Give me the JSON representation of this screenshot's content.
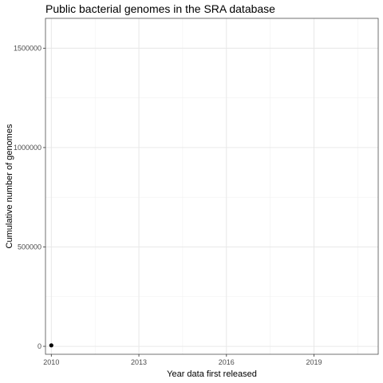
{
  "chart_data": {
    "type": "scatter",
    "title": "Public bacterial genomes in the SRA database",
    "xlabel": "Year data first released",
    "ylabel": "Cumulative number of genomes",
    "xlim": [
      2009.8,
      2021.2
    ],
    "ylim": [
      -40000,
      1650000
    ],
    "x_ticks": [
      2010,
      2013,
      2016,
      2019
    ],
    "x_tick_labels": [
      "2010",
      "2013",
      "2016",
      "2019"
    ],
    "y_ticks": [
      0,
      500000,
      1000000,
      1500000
    ],
    "y_tick_labels": [
      "0",
      "500000",
      "1000000",
      "1500000"
    ],
    "grid": true,
    "points": [
      {
        "x": 2010,
        "y": 5000
      }
    ],
    "point_color": "#000000"
  }
}
